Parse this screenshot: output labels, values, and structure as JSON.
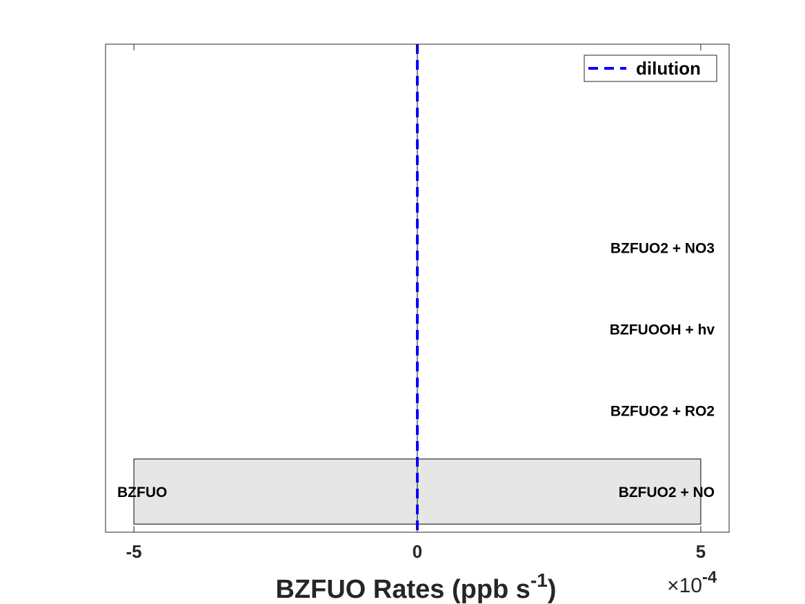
{
  "chart_data": {
    "type": "bar",
    "orientation": "horizontal",
    "xlabel_main": "BZFUO Rates (ppb s",
    "xlabel_sup": "-1",
    "xlabel_close": ")",
    "x_exponent_prefix": "×10",
    "x_exponent_power": "-4",
    "xlim": [
      -5.5,
      5.5
    ],
    "x_ticks": [
      {
        "value": -5,
        "label": "-5"
      },
      {
        "value": 0,
        "label": "0"
      },
      {
        "value": 5,
        "label": "5"
      }
    ],
    "n_rows": 6,
    "bars": [
      {
        "row": 1,
        "start": -5,
        "end": 5,
        "color": "#e6e6e6",
        "left_label": "BZFUO",
        "right_label": "BZFUO2 + NO"
      }
    ],
    "row_labels": [
      {
        "row": 2,
        "text": "BZFUO2 + RO2"
      },
      {
        "row": 3,
        "text": "BZFUOOH + hv"
      },
      {
        "row": 4,
        "text": "BZFUO2 + NO3"
      }
    ],
    "reference_line": {
      "x": 0,
      "style": "dashed",
      "color": "#0000ff",
      "name": "dilution"
    },
    "legend": {
      "position": "top-right",
      "entries": [
        "dilution"
      ]
    },
    "grid": false
  }
}
